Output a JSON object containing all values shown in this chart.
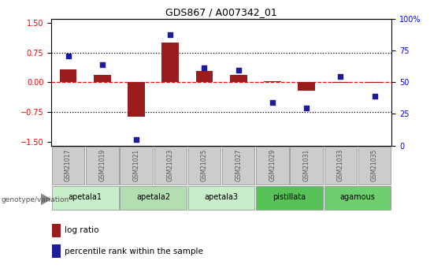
{
  "title": "GDS867 / A007342_01",
  "samples": [
    "GSM21017",
    "GSM21019",
    "GSM21021",
    "GSM21023",
    "GSM21025",
    "GSM21027",
    "GSM21029",
    "GSM21031",
    "GSM21033",
    "GSM21035"
  ],
  "log_ratio": [
    0.32,
    0.18,
    -0.88,
    1.0,
    0.28,
    0.18,
    0.03,
    -0.22,
    -0.02,
    -0.02
  ],
  "percentile_rank": [
    72,
    65,
    2,
    90,
    62,
    60,
    33,
    28,
    55,
    38
  ],
  "groups": [
    {
      "label": "apetala1",
      "indices": [
        0,
        1
      ],
      "color": "#c8edc9"
    },
    {
      "label": "apetala2",
      "indices": [
        2,
        3
      ],
      "color": "#b2dfb2"
    },
    {
      "label": "apetala3",
      "indices": [
        4,
        5
      ],
      "color": "#c8edc9"
    },
    {
      "label": "pistillata",
      "indices": [
        6,
        7
      ],
      "color": "#57c257"
    },
    {
      "label": "agamous",
      "indices": [
        8,
        9
      ],
      "color": "#6ecf6e"
    }
  ],
  "ylim_left": [
    -1.6,
    1.6
  ],
  "ylim_right": [
    0,
    100
  ],
  "yticks_left": [
    -1.5,
    -0.75,
    0,
    0.75,
    1.5
  ],
  "yticks_right": [
    0,
    25,
    50,
    75,
    100
  ],
  "hlines_dotted": [
    0.75,
    -0.75
  ],
  "bar_color": "#9B1C1C",
  "dot_color": "#1C1C9B",
  "legend_bar_label": "log ratio",
  "legend_dot_label": "percentile rank within the sample",
  "genotype_label": "genotype/variation",
  "sample_box_color": "#cccccc",
  "sample_text_color": "#555555"
}
